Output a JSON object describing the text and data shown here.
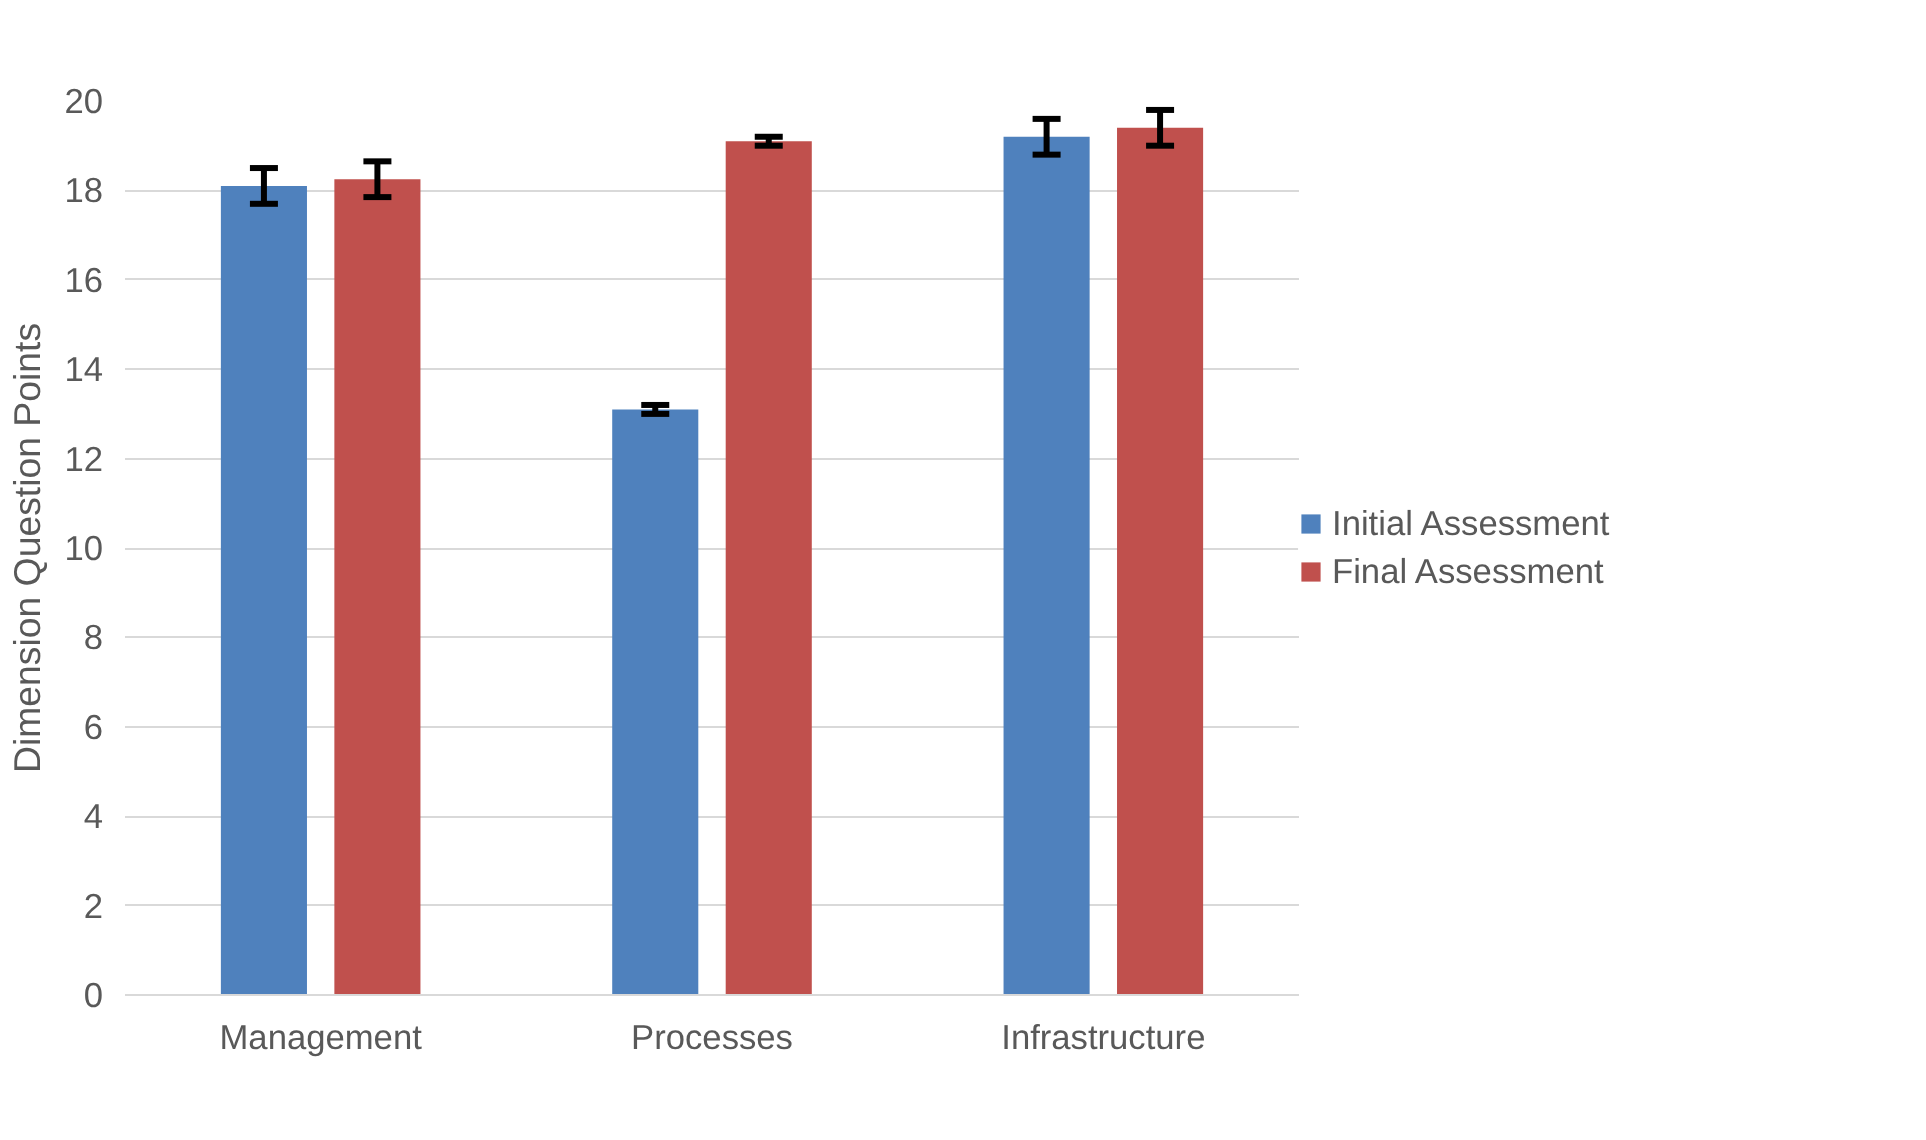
{
  "chart_data": {
    "type": "bar",
    "ylabel": "Dimension Question Points",
    "categories": [
      "Management",
      "Processes",
      "Infrastructure"
    ],
    "series": [
      {
        "name": "Initial Assessment",
        "color": "#4f81bd",
        "values": [
          18.1,
          13.1,
          19.2
        ],
        "errors": [
          0.4,
          0.1,
          0.4
        ]
      },
      {
        "name": "Final Assessment",
        "color": "#c0504d",
        "values": [
          18.25,
          19.1,
          19.4
        ],
        "errors": [
          0.4,
          0.1,
          0.4
        ]
      }
    ],
    "ylim": [
      0,
      20
    ],
    "yticks": [
      0,
      2,
      4,
      6,
      8,
      10,
      12,
      14,
      16,
      18,
      20
    ],
    "grid": "y",
    "legend": "right"
  }
}
